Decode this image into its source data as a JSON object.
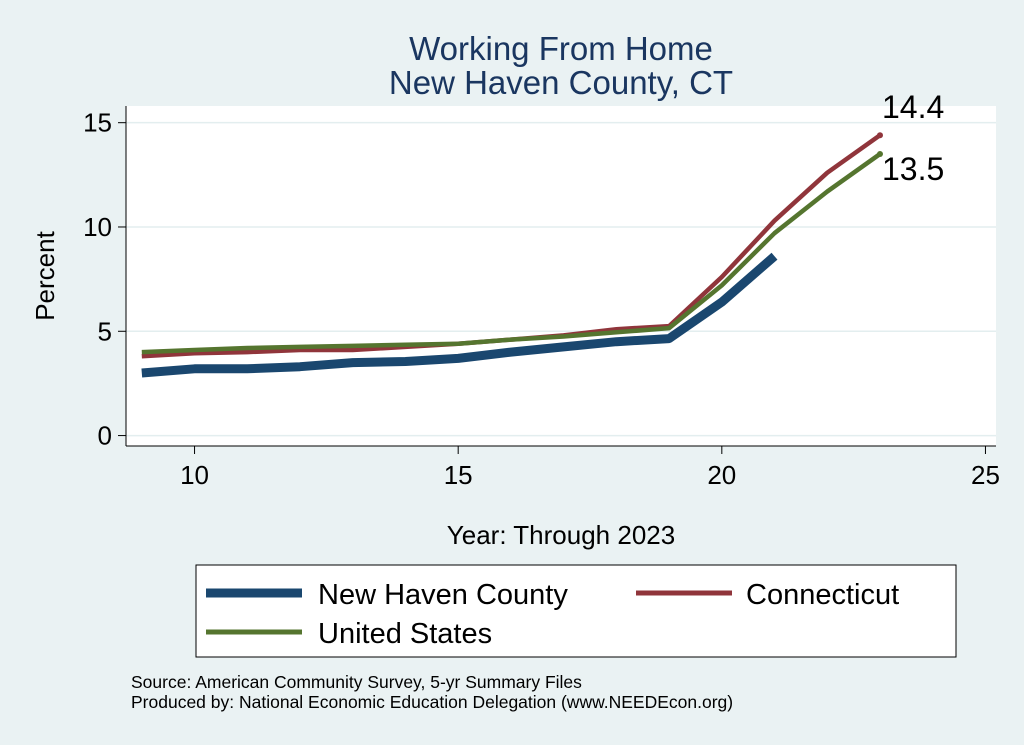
{
  "chart_data": {
    "type": "line",
    "title": [
      "Working From Home",
      "New Haven County, CT"
    ],
    "xlabel": "Year: Through 2023",
    "ylabel": "Percent",
    "xlim": [
      8.7,
      25.2
    ],
    "ylim": [
      -0.5,
      15.8
    ],
    "xticks": [
      10,
      15,
      20,
      25
    ],
    "yticks": [
      0,
      5,
      10,
      15
    ],
    "grid": true,
    "legend_position": "bottom",
    "series": [
      {
        "name": "New Haven County",
        "color": "#1a476f",
        "x": [
          9,
          10,
          11,
          12,
          13,
          14,
          15,
          16,
          17,
          18,
          19,
          20,
          21
        ],
        "y": [
          3.0,
          3.2,
          3.2,
          3.3,
          3.5,
          3.55,
          3.7,
          4.0,
          4.25,
          4.5,
          4.65,
          6.4,
          8.6
        ]
      },
      {
        "name": "Connecticut",
        "color": "#90353b",
        "x": [
          9,
          10,
          11,
          12,
          13,
          14,
          15,
          16,
          17,
          18,
          19,
          20,
          21,
          22,
          23
        ],
        "y": [
          3.8,
          3.95,
          4.0,
          4.1,
          4.1,
          4.25,
          4.4,
          4.6,
          4.8,
          5.1,
          5.25,
          7.6,
          10.3,
          12.6,
          14.4
        ],
        "end_label": "14.4"
      },
      {
        "name": "United States",
        "color": "#55752f",
        "x": [
          9,
          10,
          11,
          12,
          13,
          14,
          15,
          16,
          17,
          18,
          19,
          20,
          21,
          22,
          23
        ],
        "y": [
          4.0,
          4.1,
          4.2,
          4.25,
          4.3,
          4.35,
          4.4,
          4.6,
          4.75,
          4.95,
          5.15,
          7.2,
          9.7,
          11.7,
          13.5
        ],
        "end_label": "13.5"
      }
    ]
  },
  "notes": {
    "source": "Source: American Community Survey, 5-yr Summary Files",
    "produced_by": "Produced by: National Economic Education Delegation (www.NEEDEcon.org)"
  }
}
